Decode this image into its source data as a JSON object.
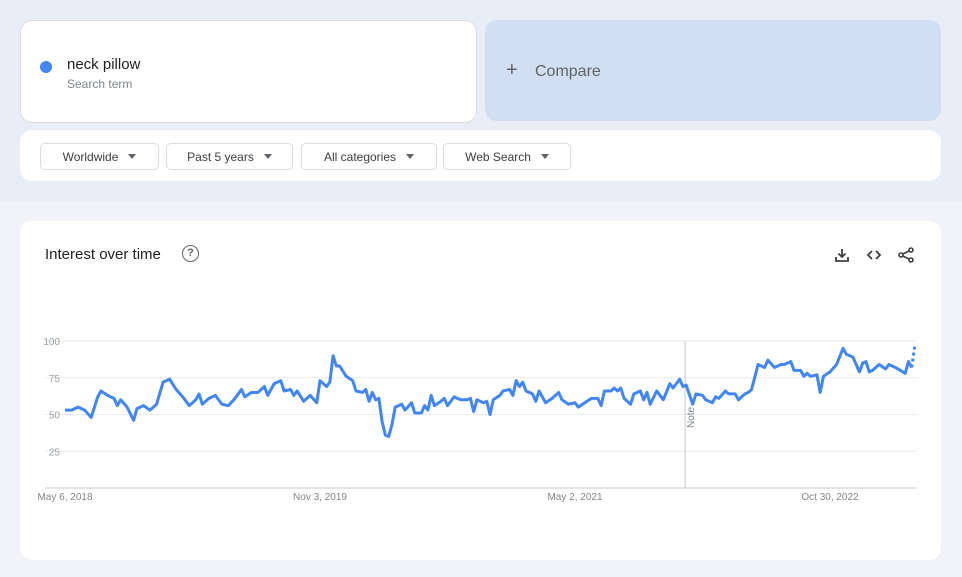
{
  "search": {
    "term": "neck pillow",
    "subtitle": "Search term",
    "term_color": "#4285f4"
  },
  "compare": {
    "icon": "plus-icon",
    "plus": "+",
    "label": "Compare"
  },
  "filters": [
    {
      "label": "Worldwide"
    },
    {
      "label": "Past 5 years"
    },
    {
      "label": "All categories"
    },
    {
      "label": "Web Search"
    }
  ],
  "panel": {
    "title": "Interest over time",
    "help": "?",
    "actions": [
      "download-icon",
      "embed-code-icon",
      "share-icon"
    ]
  },
  "chart_data": {
    "type": "line",
    "title": "",
    "xlabel": "",
    "ylabel": "",
    "ylim": [
      0,
      100
    ],
    "yticks": [
      25,
      50,
      75,
      100
    ],
    "xtick_labels": [
      "May 6, 2018",
      "Nov 3, 2019",
      "May 2, 2021",
      "Oct 30, 2022"
    ],
    "xticks": [
      "2018-05-06",
      "2019-11-03",
      "2021-05-02",
      "2022-10-30"
    ],
    "xlim": [
      "2018-05-06",
      "2023-04-30"
    ],
    "grid": true,
    "note_label": "Note",
    "series": [
      {
        "color": "#4285f4",
        "partial_last_point": true,
        "points": [
          [
            "2018-05-06",
            53
          ],
          [
            "2018-05-20",
            53
          ],
          [
            "2018-06-03",
            55
          ],
          [
            "2018-06-17",
            53
          ],
          [
            "2018-07-01",
            48
          ],
          [
            "2018-07-15",
            62
          ],
          [
            "2018-07-22",
            66
          ],
          [
            "2018-08-05",
            63
          ],
          [
            "2018-08-19",
            61
          ],
          [
            "2018-08-26",
            56
          ],
          [
            "2018-09-02",
            60
          ],
          [
            "2018-09-16",
            55
          ],
          [
            "2018-09-30",
            46
          ],
          [
            "2018-10-07",
            54
          ],
          [
            "2018-10-21",
            56
          ],
          [
            "2018-11-04",
            53
          ],
          [
            "2018-11-18",
            57
          ],
          [
            "2018-12-02",
            72
          ],
          [
            "2018-12-16",
            74
          ],
          [
            "2018-12-30",
            67
          ],
          [
            "2019-01-13",
            62
          ],
          [
            "2019-01-27",
            56
          ],
          [
            "2019-02-10",
            60
          ],
          [
            "2019-02-17",
            64
          ],
          [
            "2019-02-24",
            57
          ],
          [
            "2019-03-10",
            61
          ],
          [
            "2019-03-24",
            63
          ],
          [
            "2019-04-07",
            57
          ],
          [
            "2019-04-21",
            56
          ],
          [
            "2019-05-05",
            61
          ],
          [
            "2019-05-19",
            67
          ],
          [
            "2019-05-26",
            62
          ],
          [
            "2019-06-09",
            65
          ],
          [
            "2019-06-23",
            65
          ],
          [
            "2019-07-07",
            69
          ],
          [
            "2019-07-14",
            63
          ],
          [
            "2019-07-28",
            71
          ],
          [
            "2019-08-11",
            73
          ],
          [
            "2019-08-18",
            66
          ],
          [
            "2019-09-01",
            67
          ],
          [
            "2019-09-08",
            63
          ],
          [
            "2019-09-15",
            66
          ],
          [
            "2019-09-29",
            59
          ],
          [
            "2019-10-13",
            63
          ],
          [
            "2019-10-27",
            58
          ],
          [
            "2019-11-03",
            73
          ],
          [
            "2019-11-17",
            69
          ],
          [
            "2019-11-24",
            72
          ],
          [
            "2019-12-01",
            90
          ],
          [
            "2019-12-08",
            83
          ],
          [
            "2019-12-15",
            83
          ],
          [
            "2019-12-29",
            76
          ],
          [
            "2020-01-12",
            73
          ],
          [
            "2020-01-19",
            66
          ],
          [
            "2020-02-02",
            65
          ],
          [
            "2020-02-09",
            67
          ],
          [
            "2020-02-16",
            59
          ],
          [
            "2020-02-23",
            65
          ],
          [
            "2020-03-01",
            60
          ],
          [
            "2020-03-08",
            61
          ],
          [
            "2020-03-15",
            45
          ],
          [
            "2020-03-22",
            36
          ],
          [
            "2020-03-29",
            35
          ],
          [
            "2020-04-05",
            43
          ],
          [
            "2020-04-12",
            55
          ],
          [
            "2020-04-26",
            57
          ],
          [
            "2020-05-03",
            53
          ],
          [
            "2020-05-17",
            58
          ],
          [
            "2020-05-24",
            51
          ],
          [
            "2020-06-07",
            51
          ],
          [
            "2020-06-14",
            56
          ],
          [
            "2020-06-21",
            53
          ],
          [
            "2020-06-28",
            63
          ],
          [
            "2020-07-05",
            56
          ],
          [
            "2020-07-19",
            59
          ],
          [
            "2020-07-26",
            61
          ],
          [
            "2020-08-02",
            56
          ],
          [
            "2020-08-09",
            59
          ],
          [
            "2020-08-16",
            62
          ],
          [
            "2020-08-30",
            60
          ],
          [
            "2020-09-13",
            60
          ],
          [
            "2020-09-20",
            61
          ],
          [
            "2020-09-27",
            52
          ],
          [
            "2020-10-04",
            60
          ],
          [
            "2020-10-18",
            58
          ],
          [
            "2020-10-25",
            59
          ],
          [
            "2020-11-01",
            50
          ],
          [
            "2020-11-08",
            60
          ],
          [
            "2020-11-22",
            63
          ],
          [
            "2020-11-29",
            66
          ],
          [
            "2020-12-13",
            67
          ],
          [
            "2020-12-20",
            63
          ],
          [
            "2020-12-27",
            73
          ],
          [
            "2021-01-03",
            69
          ],
          [
            "2021-01-10",
            72
          ],
          [
            "2021-01-17",
            66
          ],
          [
            "2021-01-31",
            64
          ],
          [
            "2021-02-07",
            59
          ],
          [
            "2021-02-14",
            66
          ],
          [
            "2021-02-28",
            58
          ],
          [
            "2021-03-14",
            61
          ],
          [
            "2021-03-28",
            65
          ],
          [
            "2021-04-04",
            60
          ],
          [
            "2021-04-18",
            57
          ],
          [
            "2021-05-02",
            58
          ],
          [
            "2021-05-09",
            55
          ],
          [
            "2021-05-23",
            58
          ],
          [
            "2021-06-06",
            61
          ],
          [
            "2021-06-20",
            61
          ],
          [
            "2021-06-27",
            56
          ],
          [
            "2021-07-04",
            66
          ],
          [
            "2021-07-18",
            66
          ],
          [
            "2021-07-25",
            68
          ],
          [
            "2021-08-01",
            66
          ],
          [
            "2021-08-08",
            68
          ],
          [
            "2021-08-15",
            61
          ],
          [
            "2021-08-29",
            57
          ],
          [
            "2021-09-05",
            64
          ],
          [
            "2021-09-19",
            66
          ],
          [
            "2021-09-26",
            60
          ],
          [
            "2021-10-03",
            65
          ],
          [
            "2021-10-10",
            57
          ],
          [
            "2021-10-24",
            66
          ],
          [
            "2021-11-07",
            60
          ],
          [
            "2021-11-21",
            71
          ],
          [
            "2021-11-28",
            68
          ],
          [
            "2021-12-12",
            74
          ],
          [
            "2021-12-19",
            69
          ],
          [
            "2021-12-26",
            70
          ],
          [
            "2022-01-09",
            57
          ],
          [
            "2022-01-16",
            64
          ],
          [
            "2022-01-30",
            63
          ],
          [
            "2022-02-06",
            60
          ],
          [
            "2022-02-20",
            58
          ],
          [
            "2022-02-27",
            62
          ],
          [
            "2022-03-06",
            61
          ],
          [
            "2022-03-20",
            66
          ],
          [
            "2022-03-27",
            64
          ],
          [
            "2022-04-10",
            64
          ],
          [
            "2022-04-17",
            60
          ],
          [
            "2022-05-01",
            64
          ],
          [
            "2022-05-08",
            65
          ],
          [
            "2022-05-15",
            67
          ],
          [
            "2022-05-29",
            84
          ],
          [
            "2022-06-12",
            82
          ],
          [
            "2022-06-19",
            87
          ],
          [
            "2022-07-03",
            82
          ],
          [
            "2022-07-17",
            84
          ],
          [
            "2022-07-24",
            84
          ],
          [
            "2022-08-07",
            86
          ],
          [
            "2022-08-14",
            80
          ],
          [
            "2022-08-28",
            80
          ],
          [
            "2022-09-04",
            76
          ],
          [
            "2022-09-11",
            78
          ],
          [
            "2022-09-18",
            76
          ],
          [
            "2022-10-02",
            77
          ],
          [
            "2022-10-09",
            65
          ],
          [
            "2022-10-16",
            76
          ],
          [
            "2022-10-30",
            79
          ],
          [
            "2022-11-13",
            84
          ],
          [
            "2022-11-27",
            95
          ],
          [
            "2022-12-04",
            91
          ],
          [
            "2022-12-18",
            89
          ],
          [
            "2023-01-01",
            79
          ],
          [
            "2023-01-08",
            85
          ],
          [
            "2023-01-15",
            86
          ],
          [
            "2023-01-22",
            79
          ],
          [
            "2023-01-29",
            80
          ],
          [
            "2023-02-12",
            84
          ],
          [
            "2023-02-26",
            81
          ],
          [
            "2023-03-05",
            84
          ],
          [
            "2023-03-19",
            82
          ],
          [
            "2023-04-09",
            78
          ],
          [
            "2023-04-16",
            86
          ],
          [
            "2023-04-23",
            82
          ],
          [
            "2023-04-30",
            98
          ]
        ]
      }
    ]
  }
}
